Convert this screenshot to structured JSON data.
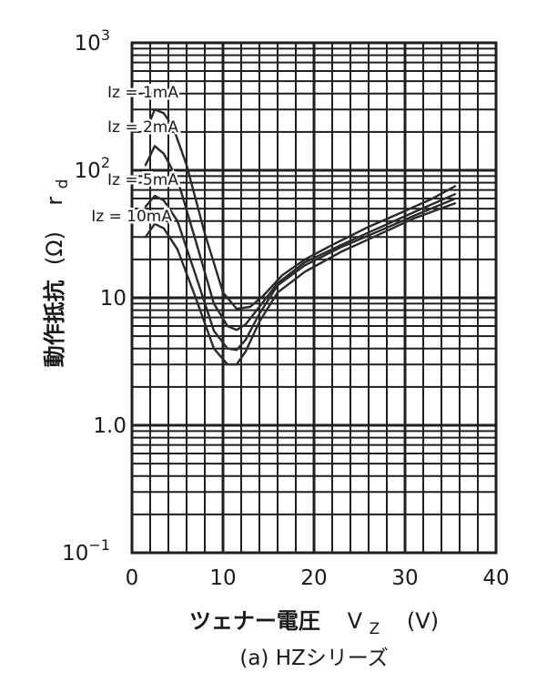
{
  "chart_data": {
    "type": "line",
    "caption": "(a) HZシリーズ",
    "xlabel": {
      "main": "ツェナー電圧",
      "symbol": "V",
      "sub": "Z",
      "unit": "(V)"
    },
    "ylabel": {
      "main": "動作抵抗",
      "symbol": "r",
      "sub": "d",
      "unit": "(Ω)"
    },
    "xlim": [
      0,
      40
    ],
    "ylim": [
      0.1,
      1000
    ],
    "yscale": "log",
    "grid": true,
    "legend": "inline labels",
    "x_ticks": [
      "0",
      "10",
      "20",
      "30",
      "40"
    ],
    "y_ticks": [
      {
        "value": 1000,
        "base": "10",
        "exp": "3"
      },
      {
        "value": 100,
        "base": "10",
        "exp": "2"
      },
      {
        "value": 10,
        "base": "10",
        "exp": ""
      },
      {
        "value": 1,
        "base": "1.0",
        "exp": ""
      },
      {
        "value": 0.1,
        "base": "10",
        "exp": "−1"
      }
    ],
    "series": [
      {
        "name": "Iz = 1mA",
        "x": [
          1.5,
          2.5,
          3.5,
          4.5,
          6,
          8,
          10,
          11.5,
          13,
          14.5,
          16.5,
          19,
          22,
          26,
          30,
          33,
          35.5
        ],
        "y": [
          200,
          300,
          280,
          220,
          110,
          32,
          11,
          8.2,
          8.5,
          10.5,
          15,
          20,
          26,
          36,
          48,
          60,
          75
        ]
      },
      {
        "name": "Iz = 2mA",
        "x": [
          1.5,
          2.5,
          3.5,
          5,
          7,
          9,
          10.5,
          11.5,
          12.5,
          14,
          16,
          19,
          23,
          27,
          31,
          35.5
        ],
        "y": [
          110,
          155,
          135,
          85,
          28,
          9,
          6,
          5.6,
          6.2,
          8.5,
          13,
          19,
          26,
          35,
          47,
          65
        ]
      },
      {
        "name": "Iz = 5mA",
        "x": [
          1.5,
          2.5,
          3.5,
          5,
          7,
          9,
          10.5,
          11.5,
          12.5,
          14,
          16,
          19,
          23,
          27,
          31,
          35.5
        ],
        "y": [
          52,
          63,
          58,
          40,
          15,
          5.5,
          4,
          3.9,
          4.7,
          7.5,
          12.5,
          18,
          25,
          33,
          44,
          60
        ]
      },
      {
        "name": "Iz = 10mA",
        "x": [
          1.5,
          2.5,
          3.5,
          5,
          7,
          9,
          10.5,
          11.5,
          12.5,
          14,
          16,
          19,
          23,
          27,
          31,
          35.5
        ],
        "y": [
          30,
          38,
          35,
          24,
          10,
          4,
          3,
          3,
          3.8,
          6.5,
          11,
          16,
          23,
          31,
          42,
          55
        ]
      }
    ]
  }
}
